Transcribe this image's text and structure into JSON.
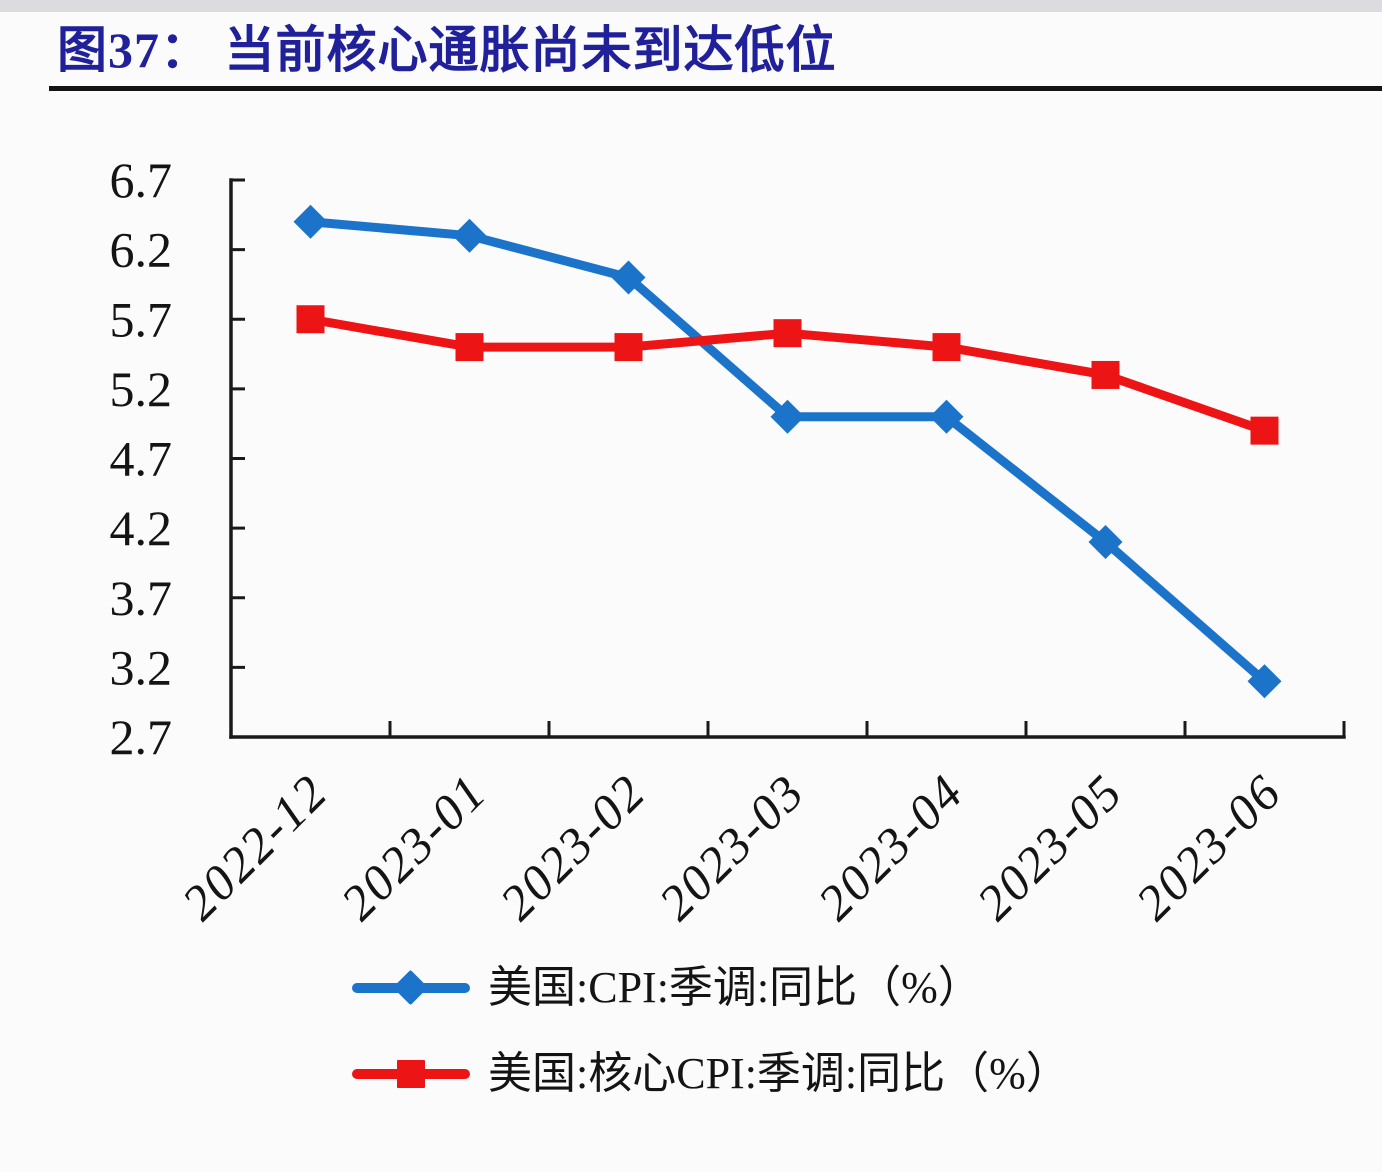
{
  "page": {
    "background": "#FBFBFC",
    "title_color": "#20209B",
    "rule_color": "#141414"
  },
  "chart_data": {
    "type": "line",
    "title": "图37：  当前核心通胀尚未到达低位",
    "xlabel": "",
    "ylabel": "",
    "categories": [
      "2022-12",
      "2023-01",
      "2023-02",
      "2023-03",
      "2023-04",
      "2023-05",
      "2023-06"
    ],
    "series": [
      {
        "name": "美国:CPI:季调:同比（%）",
        "color": "#1B74C9",
        "marker": "diamond",
        "values": [
          6.4,
          6.3,
          6.0,
          5.0,
          5.0,
          4.1,
          3.1
        ]
      },
      {
        "name": "美国:核心CPI:季调:同比（%）",
        "color": "#EC1414",
        "marker": "square",
        "values": [
          5.7,
          5.5,
          5.5,
          5.6,
          5.5,
          5.3,
          4.9
        ]
      }
    ],
    "y_axis": {
      "min": 2.7,
      "max": 6.7,
      "step": 0.5,
      "tick_labels": [
        "6.7",
        "6.2",
        "5.7",
        "5.2",
        "4.7",
        "4.2",
        "3.7",
        "3.2",
        "2.7"
      ]
    },
    "axis_color": "#1A1A1A",
    "label_color": "#141414",
    "grid": false,
    "legend_position": "bottom-left"
  }
}
